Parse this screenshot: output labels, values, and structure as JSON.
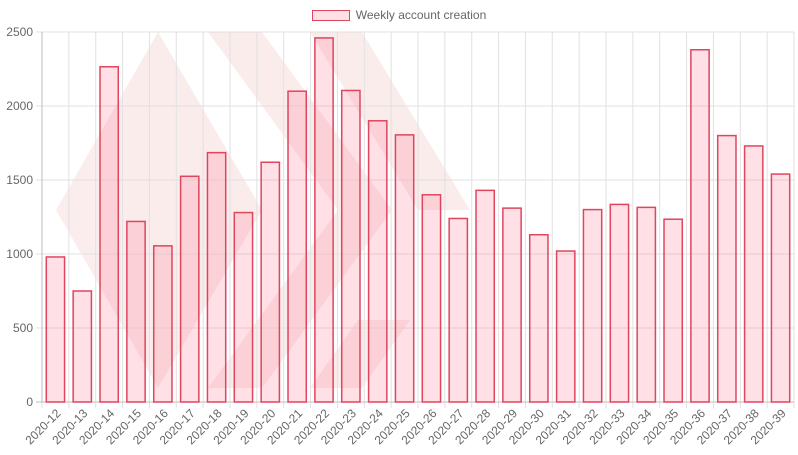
{
  "colors": {
    "bar_fill": "rgba(255, 99, 132, 0.2)",
    "bar_border": "#e0455e",
    "grid": "#e1e1e1",
    "axis_text": "#666666",
    "watermark": "#f7d6d6"
  },
  "chart_data": {
    "type": "bar",
    "title": "",
    "xlabel": "",
    "ylabel": "",
    "ylim": [
      0,
      2500
    ],
    "yticks": [
      0,
      500,
      1000,
      1500,
      2000,
      2500
    ],
    "legend_position": "top-center",
    "grid": true,
    "categories": [
      "2020-12",
      "2020-13",
      "2020-14",
      "2020-15",
      "2020-16",
      "2020-17",
      "2020-18",
      "2020-19",
      "2020-20",
      "2020-21",
      "2020-22",
      "2020-23",
      "2020-24",
      "2020-25",
      "2020-26",
      "2020-27",
      "2020-28",
      "2020-29",
      "2020-30",
      "2020-31",
      "2020-32",
      "2020-33",
      "2020-34",
      "2020-35",
      "2020-36",
      "2020-37",
      "2020-38",
      "2020-39"
    ],
    "series": [
      {
        "name": "Weekly account creation",
        "values": [
          980,
          750,
          2265,
          1220,
          1055,
          1525,
          1685,
          1280,
          1620,
          2100,
          2460,
          2105,
          1900,
          1805,
          1400,
          1240,
          1430,
          1310,
          1130,
          1020,
          1300,
          1335,
          1315,
          1235,
          2380,
          1800,
          1730,
          1540
        ]
      }
    ]
  }
}
